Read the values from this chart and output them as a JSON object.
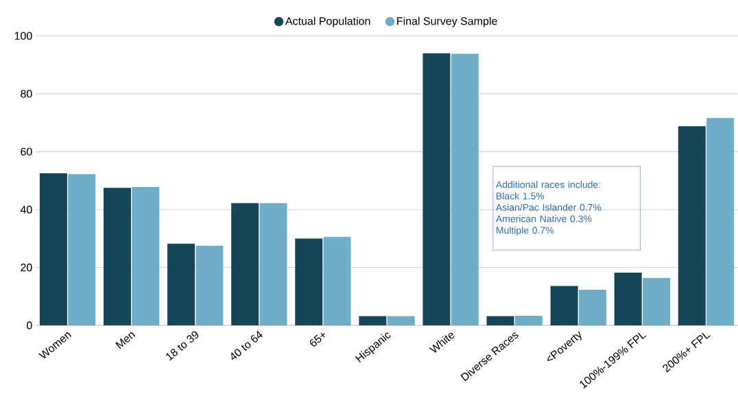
{
  "chart_data": {
    "type": "bar",
    "categories": [
      "Women",
      "Men",
      "18 to 39",
      "40 to 64",
      "65+",
      "Hispanic",
      "White",
      "Diverse Races",
      "<Poverty",
      "100%-199% FPL",
      "200%+ FPL"
    ],
    "series": [
      {
        "name": "Actual Population",
        "color": "#164558",
        "values": [
          52.5,
          47.5,
          28.2,
          42.2,
          30,
          3.2,
          94,
          3.2,
          13.6,
          18.2,
          68.8
        ]
      },
      {
        "name": "Final Survey Sample",
        "color": "#6eaec8",
        "values": [
          52.2,
          47.8,
          27.5,
          42.2,
          30.6,
          3.2,
          93.8,
          3.3,
          12.3,
          16.4,
          71.6
        ]
      }
    ],
    "ylim": [
      0,
      100
    ],
    "yticks": [
      0,
      20,
      40,
      60,
      80,
      100
    ],
    "grid": "y",
    "legend": "top",
    "annotations": [
      "Additional races include:",
      "Black  1.5%",
      "Asian/Pac Islander 0.7%",
      "American Native 0.3%",
      "Multiple  0.7%"
    ]
  }
}
